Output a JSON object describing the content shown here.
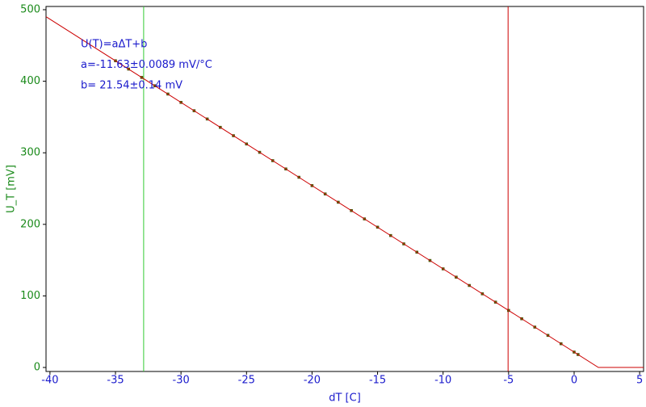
{
  "chart_data": {
    "type": "scatter",
    "x_label": "dT [C]",
    "y_label": "U_T [mV]",
    "annotations": [
      "U(T)=aΔT+b",
      "a=-11.63±0.0089 mV/°C",
      "b= 21.54±0.14 mV"
    ],
    "xlim": [
      -40.3,
      5.3
    ],
    "ylim": [
      -5.6,
      504.5
    ],
    "xticks": [
      -40,
      -35,
      -30,
      -25,
      -20,
      -15,
      -10,
      -5,
      0,
      5
    ],
    "yticks": [
      0,
      100,
      200,
      300,
      400,
      500
    ],
    "series": [
      {
        "kind": "points",
        "color": "#2e8b00",
        "x": [
          -35,
          -34,
          -33,
          -32,
          -31,
          -30,
          -29,
          -28,
          -27,
          -26,
          -25,
          -24,
          -23,
          -22,
          -21,
          -20,
          -19,
          -18,
          -17,
          -16,
          -15,
          -14,
          -13,
          -12,
          -11,
          -10,
          -9,
          -8,
          -7,
          -6,
          -5,
          -4,
          -3,
          -2,
          -1,
          0,
          0.3
        ],
        "values": [
          428.6,
          417.0,
          405.3,
          393.7,
          382.1,
          370.4,
          358.8,
          347.2,
          335.6,
          323.9,
          312.3,
          300.7,
          289.0,
          277.4,
          265.8,
          254.1,
          242.5,
          230.9,
          219.3,
          207.6,
          196.0,
          184.4,
          172.7,
          161.1,
          149.5,
          137.8,
          126.2,
          114.6,
          102.9,
          91.3,
          79.7,
          68.1,
          56.4,
          44.8,
          33.2,
          21.5,
          18.1
        ]
      },
      {
        "kind": "line",
        "color": "#cc0000",
        "x": [
          -40.3,
          1.85,
          5.3
        ],
        "values": [
          490.2,
          0,
          0
        ]
      }
    ],
    "cursor_lines": [
      {
        "x": -32.85,
        "color": "#33cc33"
      },
      {
        "x": -5.04,
        "color": "#cc0000"
      }
    ],
    "axis_label_colors": {
      "x": "#1a1acc",
      "y": "#1a8a1a"
    },
    "annotation_color": "#1a1acc"
  }
}
